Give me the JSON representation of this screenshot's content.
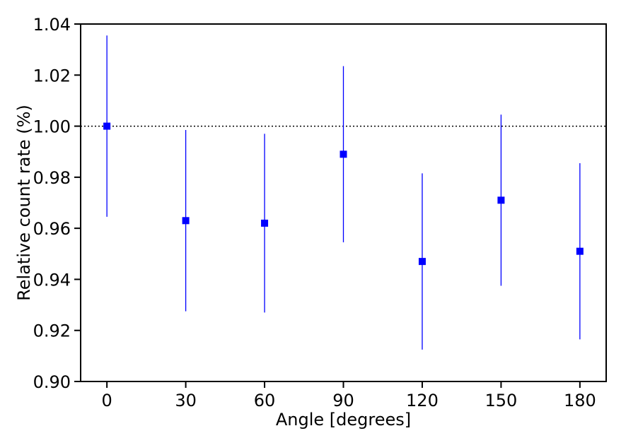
{
  "chart_data": {
    "type": "scatter",
    "xlabel": "Angle [degrees]",
    "ylabel": "Relative count rate (%)",
    "x": [
      0,
      30,
      60,
      90,
      120,
      150,
      180
    ],
    "y": [
      1.0,
      0.963,
      0.962,
      0.989,
      0.947,
      0.971,
      0.951
    ],
    "yerr": [
      0.0355,
      0.0355,
      0.035,
      0.0345,
      0.0345,
      0.0335,
      0.0345
    ],
    "xlim": [
      -10,
      190
    ],
    "ylim": [
      0.9,
      1.04
    ],
    "xticks": [
      0,
      30,
      60,
      90,
      120,
      150,
      180
    ],
    "yticks": [
      0.9,
      0.92,
      0.94,
      0.96,
      0.98,
      1.0,
      1.02,
      1.04
    ],
    "xtick_labels": [
      "0",
      "30",
      "60",
      "90",
      "120",
      "150",
      "180"
    ],
    "ytick_labels": [
      "0.90",
      "0.92",
      "0.94",
      "0.96",
      "0.98",
      "1.00",
      "1.02",
      "1.04"
    ],
    "reference_line": {
      "y": 1.0,
      "style": "dotted",
      "color": "#000000"
    },
    "marker": {
      "shape": "square",
      "color": "#0000ff"
    },
    "grid": false,
    "legend": "none"
  }
}
